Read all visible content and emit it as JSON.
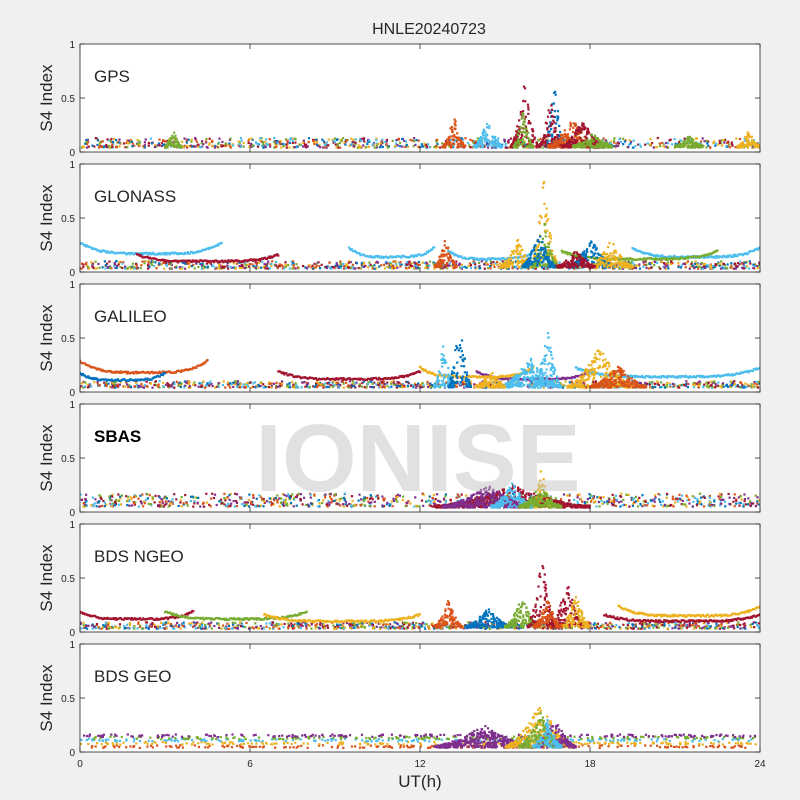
{
  "figure": {
    "title": "HNLE20240723",
    "xlabel": "UT(h)",
    "watermark": "IONISE"
  },
  "colors": {
    "background": "#f0f0f0",
    "axes_bg": "#ffffff",
    "series": [
      "#0072bd",
      "#d95319",
      "#edb120",
      "#7e2f8e",
      "#77ac30",
      "#4dbeee",
      "#a2142f"
    ]
  },
  "chart_data": [
    {
      "type": "scatter",
      "panel": "GPS",
      "ylabel": "S4 Index",
      "xlim": [
        0,
        24
      ],
      "ylim": [
        0,
        1
      ],
      "xticks": [
        0,
        6,
        12,
        18,
        24
      ],
      "xtick_labels": [
        "0",
        "6",
        "12",
        "18",
        "24"
      ],
      "yticks": [
        0,
        0.5,
        1
      ],
      "ytick_labels": [
        "0",
        "0.5",
        "1"
      ],
      "grid": false,
      "show_xticklabels": false,
      "baseline": [
        0.04,
        0.13
      ],
      "events": [
        {
          "x0": 12.8,
          "x1": 13.6,
          "ymax": 0.35,
          "c": 1
        },
        {
          "x0": 13.9,
          "x1": 14.9,
          "ymax": 0.33,
          "c": 5
        },
        {
          "x0": 15.2,
          "x1": 16.2,
          "ymax": 0.68,
          "c": 6
        },
        {
          "x0": 15.3,
          "x1": 16.0,
          "ymax": 0.42,
          "c": 4
        },
        {
          "x0": 16.4,
          "x1": 17.1,
          "ymax": 0.72,
          "c": 0
        },
        {
          "x0": 16.2,
          "x1": 17.0,
          "ymax": 0.55,
          "c": 6
        },
        {
          "x0": 16.5,
          "x1": 18.3,
          "ymax": 0.33,
          "c": 1
        },
        {
          "x0": 17.0,
          "x1": 18.5,
          "ymax": 0.32,
          "c": 6
        },
        {
          "x0": 17.4,
          "x1": 18.8,
          "ymax": 0.18,
          "c": 4
        },
        {
          "x0": 3.0,
          "x1": 3.6,
          "ymax": 0.2,
          "c": 4
        },
        {
          "x0": 21.0,
          "x1": 22.0,
          "ymax": 0.15,
          "c": 4
        },
        {
          "x0": 23.2,
          "x1": 24.0,
          "ymax": 0.2,
          "c": 2
        }
      ]
    },
    {
      "type": "scatter",
      "panel": "GLONASS",
      "ylabel": "S4 Index",
      "xlim": [
        0,
        24
      ],
      "ylim": [
        0,
        1
      ],
      "xticks": [
        0,
        6,
        12,
        18,
        24
      ],
      "xtick_labels": [
        "0",
        "6",
        "12",
        "18",
        "24"
      ],
      "yticks": [
        0,
        0.5,
        1
      ],
      "ytick_labels": [
        "0",
        "0.5",
        "1"
      ],
      "grid": false,
      "show_xticklabels": false,
      "baseline": [
        0.03,
        0.1
      ],
      "arcs": [
        {
          "x0": 0.0,
          "x1": 5.0,
          "y": 0.17,
          "c": 5
        },
        {
          "x0": 9.5,
          "x1": 12.5,
          "y": 0.14,
          "c": 5
        },
        {
          "x0": 13.0,
          "x1": 16.0,
          "y": 0.12,
          "c": 5
        },
        {
          "x0": 19.5,
          "x1": 24.0,
          "y": 0.14,
          "c": 5
        },
        {
          "x0": 17.0,
          "x1": 22.5,
          "y": 0.12,
          "c": 4
        },
        {
          "x0": 2.0,
          "x1": 7.0,
          "y": 0.1,
          "c": 6
        }
      ],
      "events": [
        {
          "x0": 12.5,
          "x1": 13.3,
          "ymax": 0.33,
          "c": 1
        },
        {
          "x0": 14.8,
          "x1": 16.1,
          "ymax": 0.3,
          "c": 2
        },
        {
          "x0": 15.9,
          "x1": 16.9,
          "ymax": 0.97,
          "c": 2
        },
        {
          "x0": 15.9,
          "x1": 16.9,
          "ymax": 0.45,
          "c": 4
        },
        {
          "x0": 15.6,
          "x1": 16.8,
          "ymax": 0.38,
          "c": 0
        },
        {
          "x0": 17.2,
          "x1": 18.9,
          "ymax": 0.3,
          "c": 0
        },
        {
          "x0": 18.0,
          "x1": 19.5,
          "ymax": 0.3,
          "c": 2
        },
        {
          "x0": 16.8,
          "x1": 18.2,
          "ymax": 0.2,
          "c": 6
        }
      ]
    },
    {
      "type": "scatter",
      "panel": "GALILEO",
      "ylabel": "S4 Index",
      "xlim": [
        0,
        24
      ],
      "ylim": [
        0,
        1
      ],
      "xticks": [
        0,
        6,
        12,
        18,
        24
      ],
      "xtick_labels": [
        "0",
        "6",
        "12",
        "18",
        "24"
      ],
      "yticks": [
        0,
        0.5,
        1
      ],
      "ytick_labels": [
        "0",
        "0.5",
        "1"
      ],
      "grid": false,
      "show_xticklabels": false,
      "baseline": [
        0.04,
        0.1
      ],
      "arcs": [
        {
          "x0": 0.0,
          "x1": 4.5,
          "y": 0.18,
          "c": 1
        },
        {
          "x0": 0.0,
          "x1": 3.0,
          "y": 0.11,
          "c": 0
        },
        {
          "x0": 7.0,
          "x1": 12.0,
          "y": 0.12,
          "c": 6
        },
        {
          "x0": 14.0,
          "x1": 18.0,
          "y": 0.12,
          "c": 3
        },
        {
          "x0": 17.5,
          "x1": 24.0,
          "y": 0.14,
          "c": 5
        },
        {
          "x0": 12.0,
          "x1": 16.0,
          "y": 0.14,
          "c": 2
        }
      ],
      "events": [
        {
          "x0": 12.5,
          "x1": 13.2,
          "ymax": 0.5,
          "c": 5
        },
        {
          "x0": 13.0,
          "x1": 13.8,
          "ymax": 0.78,
          "c": 0
        },
        {
          "x0": 14.8,
          "x1": 17.0,
          "ymax": 0.32,
          "c": 5
        },
        {
          "x0": 16.0,
          "x1": 17.0,
          "ymax": 0.58,
          "c": 5
        },
        {
          "x0": 17.2,
          "x1": 19.5,
          "ymax": 0.43,
          "c": 2
        },
        {
          "x0": 18.0,
          "x1": 20.0,
          "ymax": 0.25,
          "c": 1
        },
        {
          "x0": 14.0,
          "x1": 15.0,
          "ymax": 0.2,
          "c": 2
        }
      ]
    },
    {
      "type": "scatter",
      "panel": "SBAS",
      "ylabel": "S4 Index",
      "xlim": [
        0,
        24
      ],
      "ylim": [
        0,
        1
      ],
      "xticks": [
        0,
        6,
        12,
        18,
        24
      ],
      "xtick_labels": [
        "0",
        "6",
        "12",
        "18",
        "24"
      ],
      "yticks": [
        0,
        0.5,
        1
      ],
      "ytick_labels": [
        "0",
        "0.5",
        "1"
      ],
      "grid": false,
      "show_xticklabels": false,
      "baseline": [
        0.05,
        0.17
      ],
      "events": [
        {
          "x0": 12.5,
          "x1": 18.0,
          "ymax": 0.25,
          "c": 6
        },
        {
          "x0": 12.8,
          "x1": 16.0,
          "ymax": 0.25,
          "c": 3
        },
        {
          "x0": 14.5,
          "x1": 16.0,
          "ymax": 0.28,
          "c": 5
        },
        {
          "x0": 16.0,
          "x1": 16.6,
          "ymax": 0.45,
          "c": 2
        },
        {
          "x0": 15.5,
          "x1": 17.0,
          "ymax": 0.25,
          "c": 4
        }
      ]
    },
    {
      "type": "scatter",
      "panel": "BDS NGEO",
      "ylabel": "S4 Index",
      "xlim": [
        0,
        24
      ],
      "ylim": [
        0,
        1
      ],
      "xticks": [
        0,
        6,
        12,
        18,
        24
      ],
      "xtick_labels": [
        "0",
        "6",
        "12",
        "18",
        "24"
      ],
      "yticks": [
        0,
        0.5,
        1
      ],
      "ytick_labels": [
        "0",
        "0.5",
        "1"
      ],
      "grid": false,
      "show_xticklabels": false,
      "baseline": [
        0.03,
        0.09
      ],
      "arcs": [
        {
          "x0": 0.0,
          "x1": 4.0,
          "y": 0.12,
          "c": 6
        },
        {
          "x0": 3.0,
          "x1": 8.0,
          "y": 0.12,
          "c": 4
        },
        {
          "x0": 6.5,
          "x1": 12.0,
          "y": 0.1,
          "c": 2
        },
        {
          "x0": 19.0,
          "x1": 24.0,
          "y": 0.15,
          "c": 2
        },
        {
          "x0": 18.5,
          "x1": 24.0,
          "y": 0.1,
          "c": 6
        }
      ],
      "events": [
        {
          "x0": 12.5,
          "x1": 13.5,
          "ymax": 0.3,
          "c": 1
        },
        {
          "x0": 13.6,
          "x1": 15.2,
          "ymax": 0.22,
          "c": 0
        },
        {
          "x0": 15.0,
          "x1": 16.2,
          "ymax": 0.33,
          "c": 4
        },
        {
          "x0": 15.8,
          "x1": 16.8,
          "ymax": 0.75,
          "c": 6
        },
        {
          "x0": 16.6,
          "x1": 17.8,
          "ymax": 0.5,
          "c": 6
        },
        {
          "x0": 17.0,
          "x1": 18.0,
          "ymax": 0.38,
          "c": 2
        },
        {
          "x0": 16.0,
          "x1": 17.0,
          "ymax": 0.32,
          "c": 1
        }
      ]
    },
    {
      "type": "scatter",
      "panel": "BDS GEO",
      "ylabel": "S4 Index",
      "xlim": [
        0,
        24
      ],
      "ylim": [
        0,
        1
      ],
      "xticks": [
        0,
        6,
        12,
        18,
        24
      ],
      "xtick_labels": [
        "0",
        "6",
        "12",
        "18",
        "24"
      ],
      "yticks": [
        0,
        0.5,
        1
      ],
      "ytick_labels": [
        "0",
        "0.5",
        "1"
      ],
      "grid": false,
      "show_xticklabels": true,
      "bands": [
        {
          "y": 0.05,
          "c": 1
        },
        {
          "y": 0.08,
          "c": 2
        },
        {
          "y": 0.11,
          "c": 5
        },
        {
          "y": 0.13,
          "c": 4
        },
        {
          "y": 0.15,
          "c": 3
        }
      ],
      "events": [
        {
          "x0": 12.5,
          "x1": 16.0,
          "ymax": 0.25,
          "c": 3
        },
        {
          "x0": 15.0,
          "x1": 17.5,
          "ymax": 0.45,
          "c": 2
        },
        {
          "x0": 16.0,
          "x1": 17.5,
          "ymax": 0.32,
          "c": 3
        },
        {
          "x0": 15.5,
          "x1": 17.0,
          "ymax": 0.38,
          "c": 4
        },
        {
          "x0": 16.0,
          "x1": 17.0,
          "ymax": 0.3,
          "c": 5
        }
      ]
    }
  ]
}
